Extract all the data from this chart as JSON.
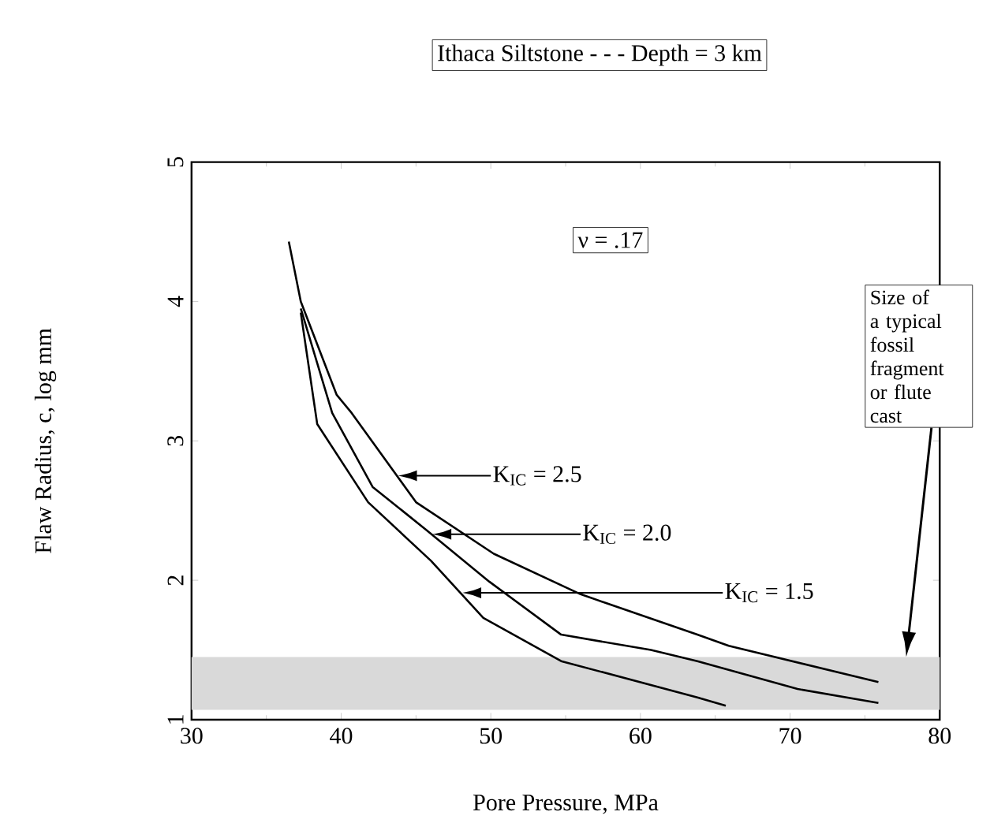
{
  "chart_data": {
    "type": "line",
    "title": "Ithaca Siltstone - - - Depth = 3 km",
    "xlabel": "Pore Pressure, MPa",
    "ylabel": "Flaw Radius, c, log mm",
    "xlim": [
      30,
      80
    ],
    "ylim": [
      1,
      5
    ],
    "xticks": [
      30,
      40,
      50,
      60,
      70,
      80
    ],
    "yticks": [
      1,
      2,
      3,
      4,
      5
    ],
    "grid": false,
    "marker": "none",
    "line_style": "solid",
    "series": [
      {
        "color": "#000000",
        "x": [
          36.5,
          37.3,
          39.7,
          40.7,
          45.0,
          50.2,
          56.0,
          63.8,
          65.9,
          75.9
        ],
        "values": [
          4.43,
          4.0,
          3.33,
          3.2,
          2.56,
          2.19,
          1.9,
          1.61,
          1.53,
          1.27
        ]
      },
      {
        "color": "#000000",
        "x": [
          37.3,
          39.4,
          42.1,
          45.7,
          49.9,
          54.7,
          60.7,
          63.8,
          70.5,
          75.9
        ],
        "values": [
          3.95,
          3.2,
          2.67,
          2.36,
          1.99,
          1.61,
          1.5,
          1.42,
          1.22,
          1.12
        ]
      },
      {
        "color": "#000000",
        "x": [
          37.3,
          38.4,
          41.8,
          46.0,
          49.5,
          54.7,
          63.8,
          65.7
        ],
        "values": [
          3.92,
          3.12,
          2.56,
          2.14,
          1.73,
          1.42,
          1.16,
          1.1
        ]
      }
    ],
    "bands": [
      {
        "axis": "y",
        "from": 1.07,
        "to": 1.45,
        "color": "#d9d9d9"
      }
    ],
    "annotations": [
      "ν = .17",
      "Size of a typical fossil fragment or flute cast",
      "K$_{IC}$ = 2.5",
      "K$_{IC}$ = 2.0",
      "K$_{IC}$ = 1.5"
    ]
  }
}
